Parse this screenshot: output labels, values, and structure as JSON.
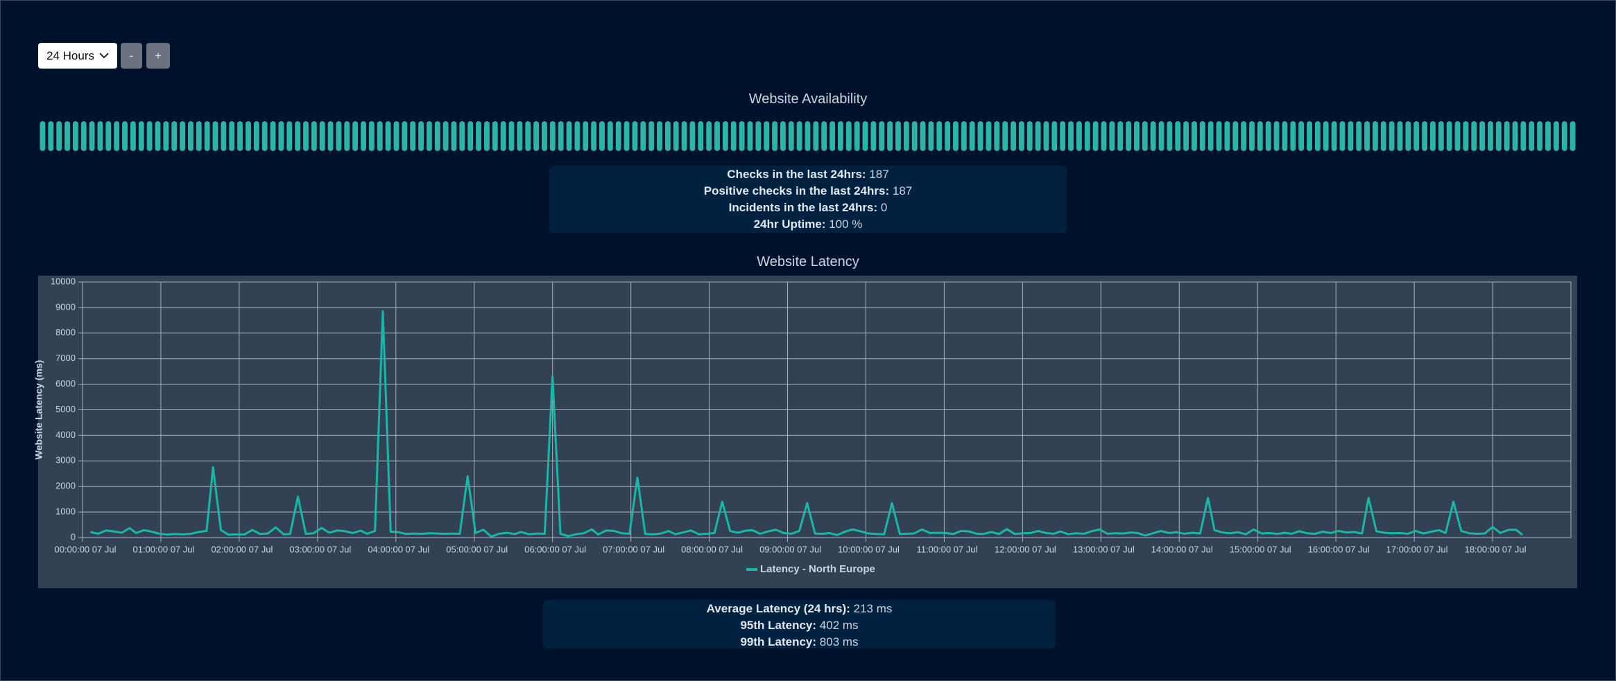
{
  "controls": {
    "range": "24 Hours",
    "minus": "-",
    "plus": "+"
  },
  "availability": {
    "title": "Website Availability",
    "stats": [
      {
        "label": "Checks in the last 24hrs:",
        "value": "187"
      },
      {
        "label": "Positive checks in the last 24hrs:",
        "value": "187"
      },
      {
        "label": "Incidents in the last 24hrs:",
        "value": "0"
      },
      {
        "label": "24hr Uptime:",
        "value": "100 %"
      }
    ]
  },
  "latency_stats": [
    {
      "label": "Average Latency (24 hrs):",
      "value": "213 ms"
    },
    {
      "label": "95th Latency:",
      "value": "402 ms"
    },
    {
      "label": "99th Latency:",
      "value": "803 ms"
    }
  ],
  "chart_data": {
    "type": "line",
    "title": "Website Latency",
    "y_label": "Website Latency (ms)",
    "x": [
      6,
      12,
      18,
      24,
      30,
      36,
      41,
      47,
      53,
      59,
      65,
      71,
      77,
      83,
      89,
      95,
      100,
      106,
      112,
      118,
      124,
      130,
      136,
      142,
      148,
      154,
      159,
      165,
      171,
      177,
      183,
      189,
      195,
      201,
      207,
      213,
      218,
      224,
      230,
      236,
      242,
      248,
      254,
      260,
      266,
      272,
      277,
      283,
      289,
      295,
      301,
      307,
      313,
      319,
      325,
      331,
      336,
      342,
      348,
      354,
      360,
      366,
      372,
      378,
      384,
      390,
      395,
      401,
      407,
      413,
      419,
      425,
      431,
      437,
      443,
      449,
      454,
      460,
      466,
      472,
      478,
      484,
      490,
      496,
      502,
      508,
      513,
      519,
      525,
      531,
      537,
      543,
      549,
      555,
      561,
      567,
      572,
      578,
      584,
      590,
      596,
      602,
      608,
      614,
      620,
      626,
      631,
      637,
      643,
      649,
      655,
      661,
      667,
      673,
      679,
      685,
      690,
      696,
      702,
      708,
      714,
      720,
      726,
      732,
      738,
      744,
      749,
      755,
      761,
      767,
      773,
      779,
      785,
      791,
      797,
      803,
      808,
      814,
      820,
      826,
      832,
      838,
      844,
      850,
      856,
      862,
      867,
      873,
      879,
      885,
      891,
      897,
      903,
      909,
      915,
      921,
      926,
      932,
      938,
      944,
      950,
      956,
      962,
      968,
      974,
      980,
      985,
      991,
      997,
      1003,
      1009,
      1015,
      1021,
      1027,
      1033,
      1039,
      1044,
      1050,
      1056,
      1062,
      1068,
      1074,
      1080,
      1086,
      1092,
      1098,
      1103
    ],
    "xlim": [
      0,
      1140
    ],
    "xticks": [
      {
        "value": 0,
        "label": "00:00:00 07 Jul"
      },
      {
        "value": 60,
        "label": "01:00:00 07 Jul"
      },
      {
        "value": 120,
        "label": "02:00:00 07 Jul"
      },
      {
        "value": 180,
        "label": "03:00:00 07 Jul"
      },
      {
        "value": 240,
        "label": "04:00:00 07 Jul"
      },
      {
        "value": 300,
        "label": "05:00:00 07 Jul"
      },
      {
        "value": 360,
        "label": "06:00:00 07 Jul"
      },
      {
        "value": 420,
        "label": "07:00:00 07 Jul"
      },
      {
        "value": 480,
        "label": "08:00:00 07 Jul"
      },
      {
        "value": 540,
        "label": "09:00:00 07 Jul"
      },
      {
        "value": 600,
        "label": "10:00:00 07 Jul"
      },
      {
        "value": 660,
        "label": "11:00:00 07 Jul"
      },
      {
        "value": 720,
        "label": "12:00:00 07 Jul"
      },
      {
        "value": 780,
        "label": "13:00:00 07 Jul"
      },
      {
        "value": 840,
        "label": "14:00:00 07 Jul"
      },
      {
        "value": 900,
        "label": "15:00:00 07 Jul"
      },
      {
        "value": 960,
        "label": "16:00:00 07 Jul"
      },
      {
        "value": 1020,
        "label": "17:00:00 07 Jul"
      },
      {
        "value": 1080,
        "label": "18:00:00 07 Jul"
      }
    ],
    "ylim": [
      0,
      10000
    ],
    "yticks": [
      0,
      1000,
      2000,
      3000,
      4000,
      5000,
      6000,
      7000,
      8000,
      9000,
      10000
    ],
    "grid": true,
    "series": [
      {
        "name": "Latency - North Europe",
        "color": "#17b8a6",
        "values": [
          220,
          150,
          280,
          240,
          190,
          370,
          180,
          290,
          230,
          150,
          120,
          140,
          130,
          150,
          220,
          260,
          2750,
          290,
          110,
          130,
          120,
          300,
          140,
          160,
          400,
          130,
          140,
          1600,
          150,
          170,
          380,
          190,
          280,
          250,
          180,
          270,
          150,
          260,
          8850,
          230,
          210,
          140,
          160,
          150,
          170,
          160,
          150,
          160,
          150,
          2400,
          180,
          310,
          40,
          150,
          190,
          140,
          220,
          130,
          160,
          150,
          6300,
          150,
          60,
          130,
          170,
          320,
          120,
          280,
          260,
          170,
          150,
          2350,
          140,
          130,
          160,
          260,
          130,
          200,
          280,
          130,
          150,
          180,
          1400,
          260,
          190,
          270,
          290,
          150,
          240,
          310,
          180,
          150,
          260,
          1350,
          160,
          150,
          180,
          100,
          230,
          320,
          240,
          160,
          140,
          130,
          1350,
          140,
          150,
          160,
          320,
          180,
          190,
          180,
          140,
          260,
          240,
          150,
          140,
          220,
          140,
          330,
          140,
          170,
          180,
          260,
          180,
          150,
          240,
          130,
          170,
          150,
          250,
          320,
          150,
          170,
          160,
          200,
          180,
          80,
          170,
          260,
          180,
          210,
          150,
          190,
          160,
          1550,
          290,
          200,
          170,
          210,
          130,
          320,
          160,
          180,
          140,
          190,
          150,
          250,
          170,
          150,
          230,
          180,
          260,
          200,
          220,
          160,
          1550,
          250,
          190,
          170,
          180,
          150,
          260,
          160,
          230,
          290,
          180,
          1400,
          260,
          170,
          150,
          160,
          420,
          180,
          300,
          310,
          100
        ]
      }
    ]
  }
}
